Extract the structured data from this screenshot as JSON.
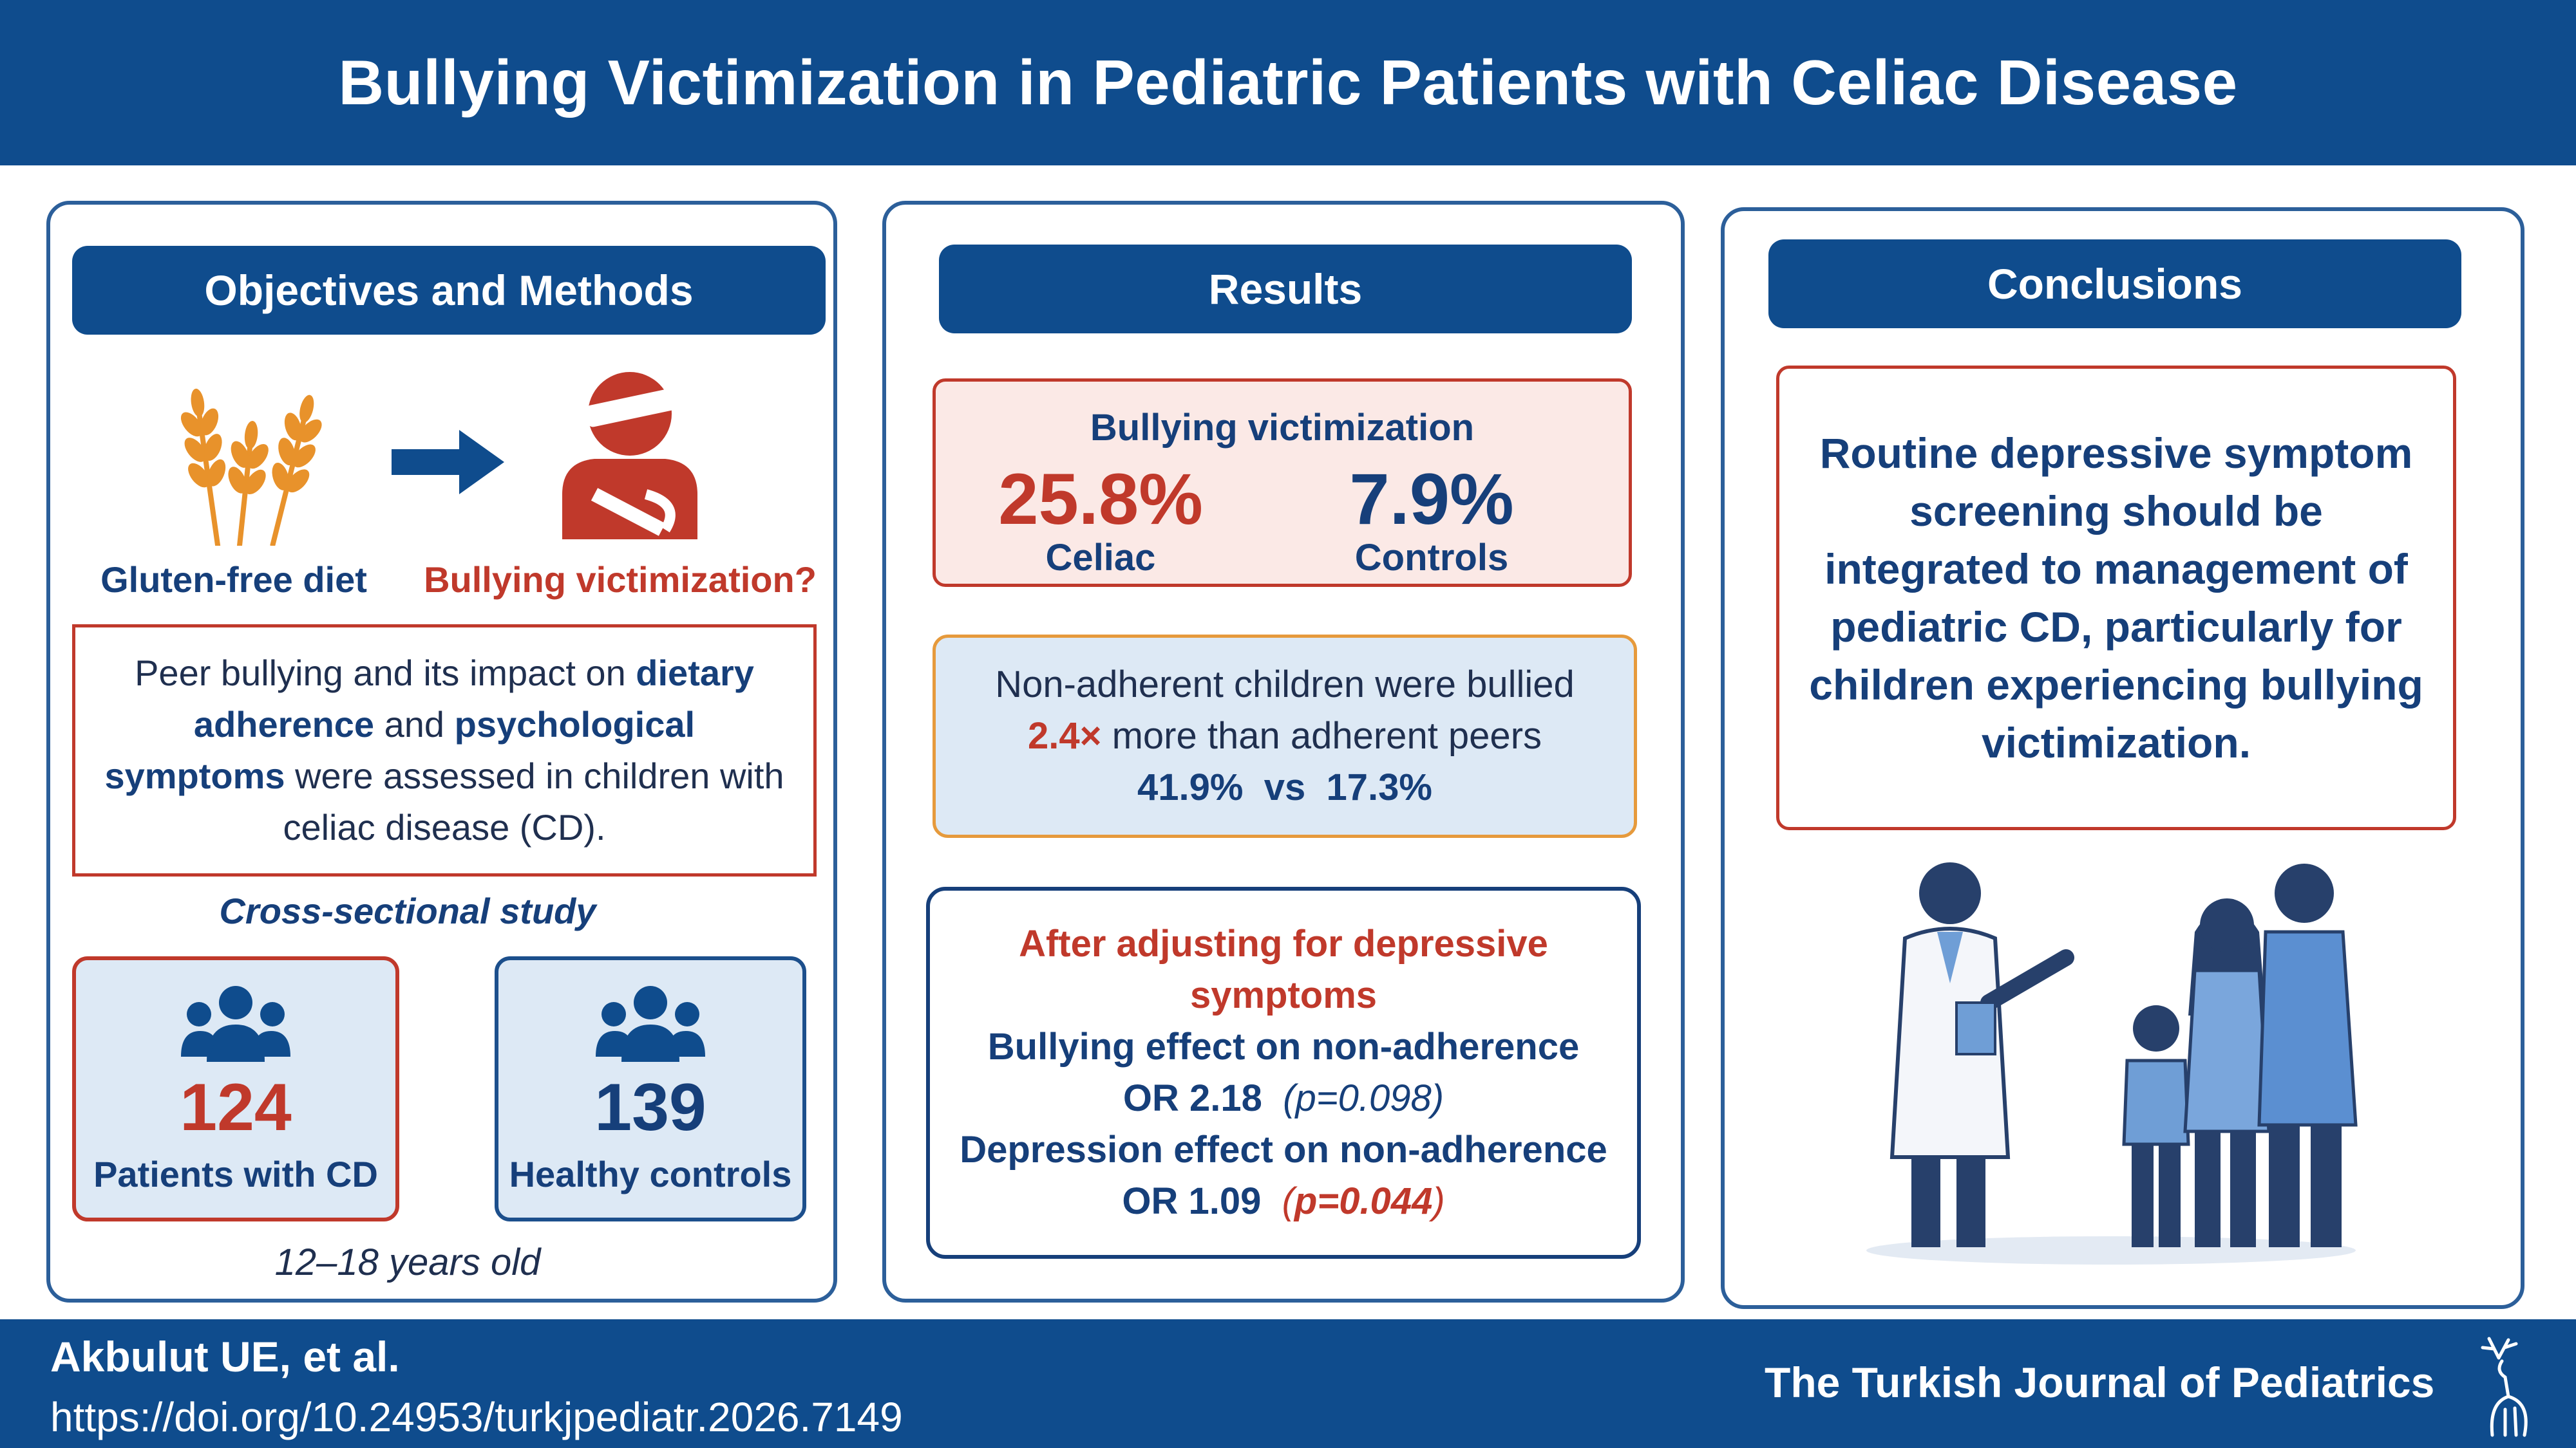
{
  "title": "Bullying Victimization in Pediatric Patients with Celiac Disease",
  "left": {
    "heading": "Objectives and Methods",
    "gf_label": "Gluten-free diet",
    "bv_label": "Bullying victimization?",
    "aim": {
      "p1": "Peer bullying and its impact on ",
      "b1": "dietary adherence",
      "p2": " and ",
      "b2": "psychological symptoms",
      "p3": " were assessed in children with celiac disease (CD)."
    },
    "design": "Cross-sectional study",
    "group_cd": {
      "n": "124",
      "label": "Patients with CD"
    },
    "group_ctrl": {
      "n": "139",
      "label": "Healthy controls"
    },
    "age": "12–18 years old"
  },
  "mid": {
    "heading": "Results",
    "box1": {
      "title": "Bullying victimization",
      "celiac_value": "25.8%",
      "celiac_label": "Celiac",
      "control_value": "7.9%",
      "control_label": "Controls"
    },
    "box2": {
      "line1": "Non-adherent children were bullied",
      "ratio": "2.4×",
      "line2_rest": " more than adherent peers",
      "line3": "41.9%  vs  17.3%"
    },
    "box3": {
      "head": "After adjusting for depressive symptoms",
      "l1": "Bullying effect on non-adherence",
      "l2_or": "OR 2.18",
      "l2_p": "(p=0.098)",
      "l3": "Depression effect on non-adherence",
      "l4_or": "OR 1.09",
      "l4_p_open": "(",
      "l4_p": "p=0.044",
      "l4_p_close": ")"
    }
  },
  "right": {
    "heading": "Conclusions",
    "text": "Routine depressive symptom screening should be integrated to management of pediatric CD, particularly for children experiencing bullying victimization."
  },
  "footer": {
    "author": "Akbulut UE, et al.",
    "doi": "https://doi.org/10.24953/turkjpediatr.2026.7149",
    "journal": "The Turkish Journal of Pediatrics"
  },
  "icons": [
    "wheat-icon",
    "arrow-right-icon",
    "bullied-child-icon",
    "people-group-icon",
    "family-doctor-illustration",
    "deer-logo"
  ],
  "colors": {
    "navy": "#0f4c8d",
    "red": "#c0392b",
    "light_blue": "#dde9f5",
    "light_red": "#fbe9e6",
    "orange": "#e69a3c"
  }
}
